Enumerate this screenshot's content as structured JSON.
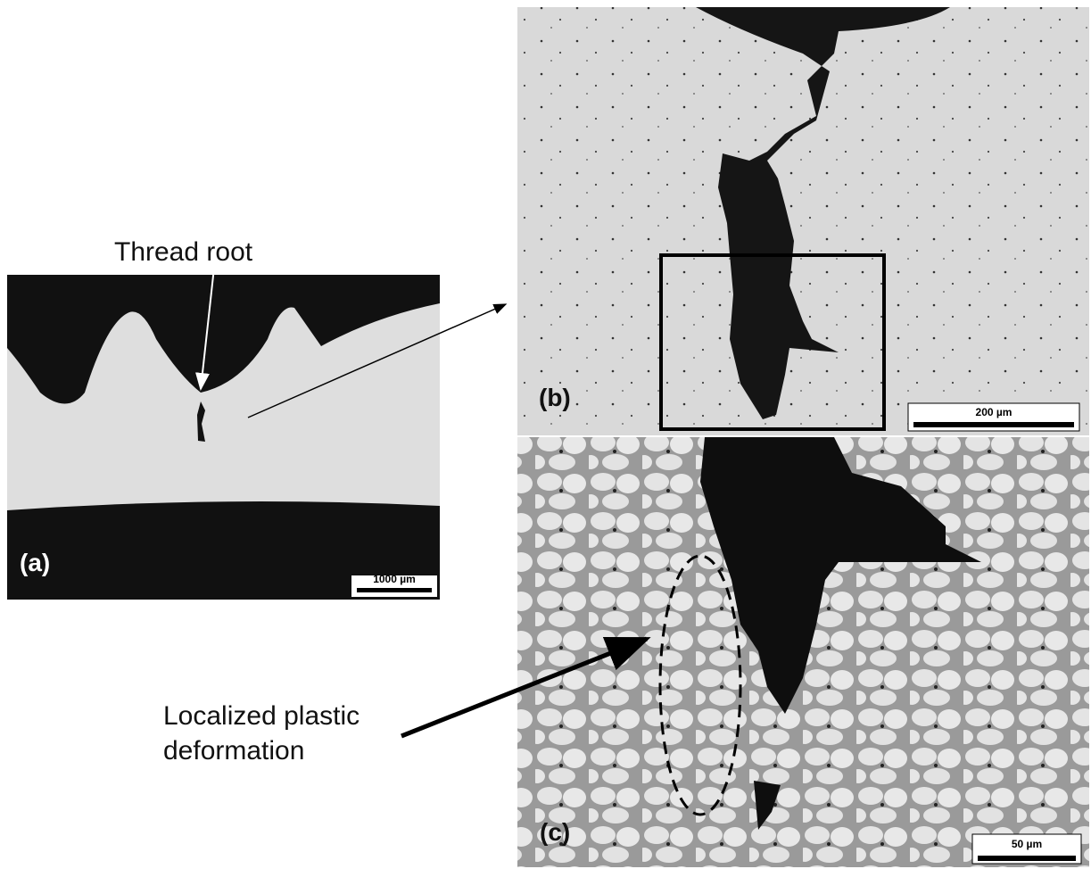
{
  "annotations": {
    "thread_root": "Thread root",
    "deformation": [
      "Localized plastic",
      "deformation"
    ]
  },
  "panels": [
    {
      "label": "(a)",
      "scale_bar": "1000 µm"
    },
    {
      "label": "(b)",
      "scale_bar": "200 µm"
    },
    {
      "label": "(c)",
      "scale_bar": "50 µm"
    }
  ]
}
